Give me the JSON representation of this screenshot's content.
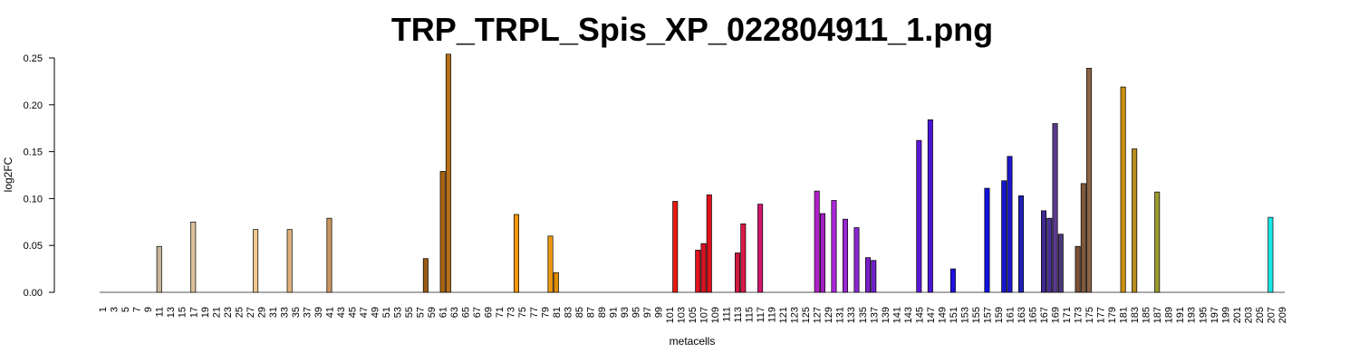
{
  "chart_data": {
    "type": "bar",
    "title": "TRP_TRPL_Spis_XP_022804911_1.png",
    "xlabel": "metacells",
    "ylabel": "log2FC",
    "ylim": [
      0,
      0.25
    ],
    "yticks": [
      "0.00",
      "0.05",
      "0.10",
      "0.15",
      "0.20",
      "0.25"
    ],
    "x_first": 1,
    "x_last": 209,
    "x_tick_step": 2,
    "baseline": 0,
    "grid": false,
    "legend": "none",
    "bars": [
      {
        "x": 11,
        "value": 0.049,
        "color": "#c8b49a"
      },
      {
        "x": 17,
        "value": 0.075,
        "color": "#dcc09a"
      },
      {
        "x": 28,
        "value": 0.067,
        "color": "#f0c890"
      },
      {
        "x": 34,
        "value": 0.067,
        "color": "#e0b07a"
      },
      {
        "x": 41,
        "value": 0.079,
        "color": "#c89460"
      },
      {
        "x": 58,
        "value": 0.036,
        "color": "#9a5a14"
      },
      {
        "x": 61,
        "value": 0.129,
        "color": "#a8640e"
      },
      {
        "x": 62,
        "value": 0.254,
        "color": "#b8701a"
      },
      {
        "x": 74,
        "value": 0.083,
        "color": "#f0980a"
      },
      {
        "x": 80,
        "value": 0.06,
        "color": "#f09a10"
      },
      {
        "x": 81,
        "value": 0.021,
        "color": "#e08c00"
      },
      {
        "x": 102,
        "value": 0.097,
        "color": "#e81a10"
      },
      {
        "x": 106,
        "value": 0.045,
        "color": "#e01420"
      },
      {
        "x": 107,
        "value": 0.052,
        "color": "#d81222"
      },
      {
        "x": 108,
        "value": 0.104,
        "color": "#e0101c"
      },
      {
        "x": 113,
        "value": 0.042,
        "color": "#d01840"
      },
      {
        "x": 114,
        "value": 0.073,
        "color": "#d81848"
      },
      {
        "x": 117,
        "value": 0.094,
        "color": "#d0186a"
      },
      {
        "x": 127,
        "value": 0.108,
        "color": "#b020c8"
      },
      {
        "x": 128,
        "value": 0.084,
        "color": "#a020c0"
      },
      {
        "x": 130,
        "value": 0.098,
        "color": "#a828d8"
      },
      {
        "x": 132,
        "value": 0.078,
        "color": "#9828d0"
      },
      {
        "x": 134,
        "value": 0.069,
        "color": "#8a28d0"
      },
      {
        "x": 136,
        "value": 0.037,
        "color": "#7a20c8"
      },
      {
        "x": 137,
        "value": 0.034,
        "color": "#7020c8"
      },
      {
        "x": 145,
        "value": 0.162,
        "color": "#5a18d8"
      },
      {
        "x": 147,
        "value": 0.184,
        "color": "#4a14d8"
      },
      {
        "x": 151,
        "value": 0.025,
        "color": "#2010e0"
      },
      {
        "x": 157,
        "value": 0.111,
        "color": "#1010e0"
      },
      {
        "x": 160,
        "value": 0.119,
        "color": "#1818d0"
      },
      {
        "x": 161,
        "value": 0.145,
        "color": "#1c18c8"
      },
      {
        "x": 163,
        "value": 0.103,
        "color": "#2020b8"
      },
      {
        "x": 167,
        "value": 0.087,
        "color": "#402890"
      },
      {
        "x": 168,
        "value": 0.079,
        "color": "#4a3090"
      },
      {
        "x": 169,
        "value": 0.18,
        "color": "#5a3a8a"
      },
      {
        "x": 170,
        "value": 0.062,
        "color": "#4a3878"
      },
      {
        "x": 173,
        "value": 0.049,
        "color": "#7a5038"
      },
      {
        "x": 174,
        "value": 0.116,
        "color": "#80583c"
      },
      {
        "x": 175,
        "value": 0.239,
        "color": "#8c6448"
      },
      {
        "x": 181,
        "value": 0.219,
        "color": "#c89010"
      },
      {
        "x": 183,
        "value": 0.153,
        "color": "#b88c20"
      },
      {
        "x": 187,
        "value": 0.107,
        "color": "#9a9a30"
      },
      {
        "x": 207,
        "value": 0.08,
        "color": "#18e8e8"
      }
    ]
  }
}
